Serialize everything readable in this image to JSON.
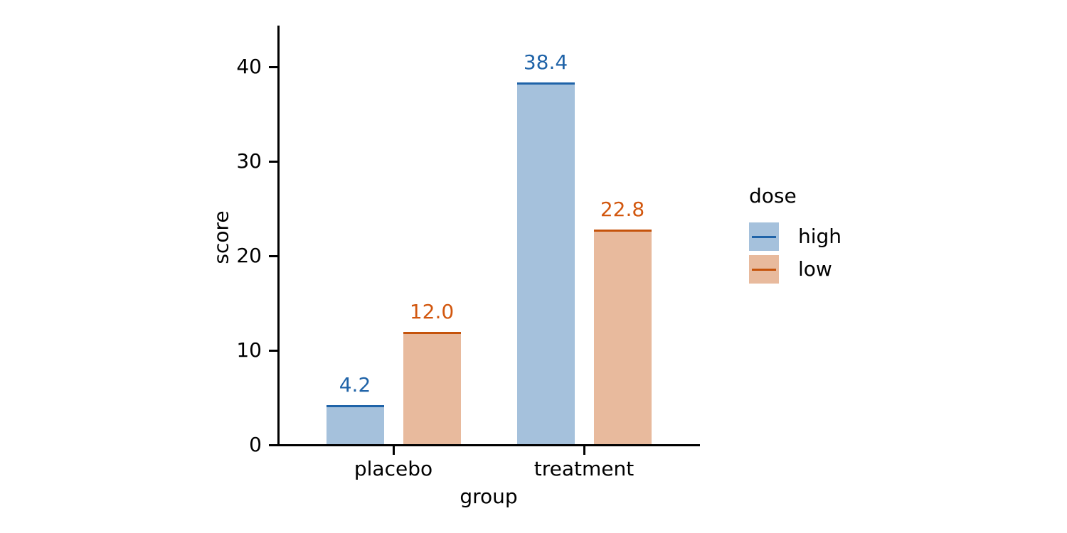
{
  "chart_data": {
    "type": "bar",
    "title": "",
    "xlabel": "group",
    "ylabel": "score",
    "categories": [
      "placebo",
      "treatment"
    ],
    "series": [
      {
        "name": "high",
        "values": [
          4.2,
          38.4
        ],
        "bar_labels": [
          "4.2",
          "38.4"
        ],
        "line_color": "#1f63a8",
        "fill_color": "#a5c1dc",
        "label_color": "#1f63a8"
      },
      {
        "name": "low",
        "values": [
          12.0,
          22.8
        ],
        "bar_labels": [
          "12.0",
          "22.8"
        ],
        "line_color": "#c5530b",
        "fill_color": "#e8ba9d",
        "label_color": "#d2570e"
      }
    ],
    "legend": {
      "title": "dose",
      "position": "right-center",
      "entries": [
        "high",
        "low"
      ]
    },
    "axes": {
      "yticks": [
        0,
        10,
        20,
        30,
        40
      ],
      "ylim": [
        0,
        44.4
      ],
      "grid": false,
      "axis_color": "#000000",
      "text_color": "#000000",
      "background": "#ffffff"
    }
  }
}
